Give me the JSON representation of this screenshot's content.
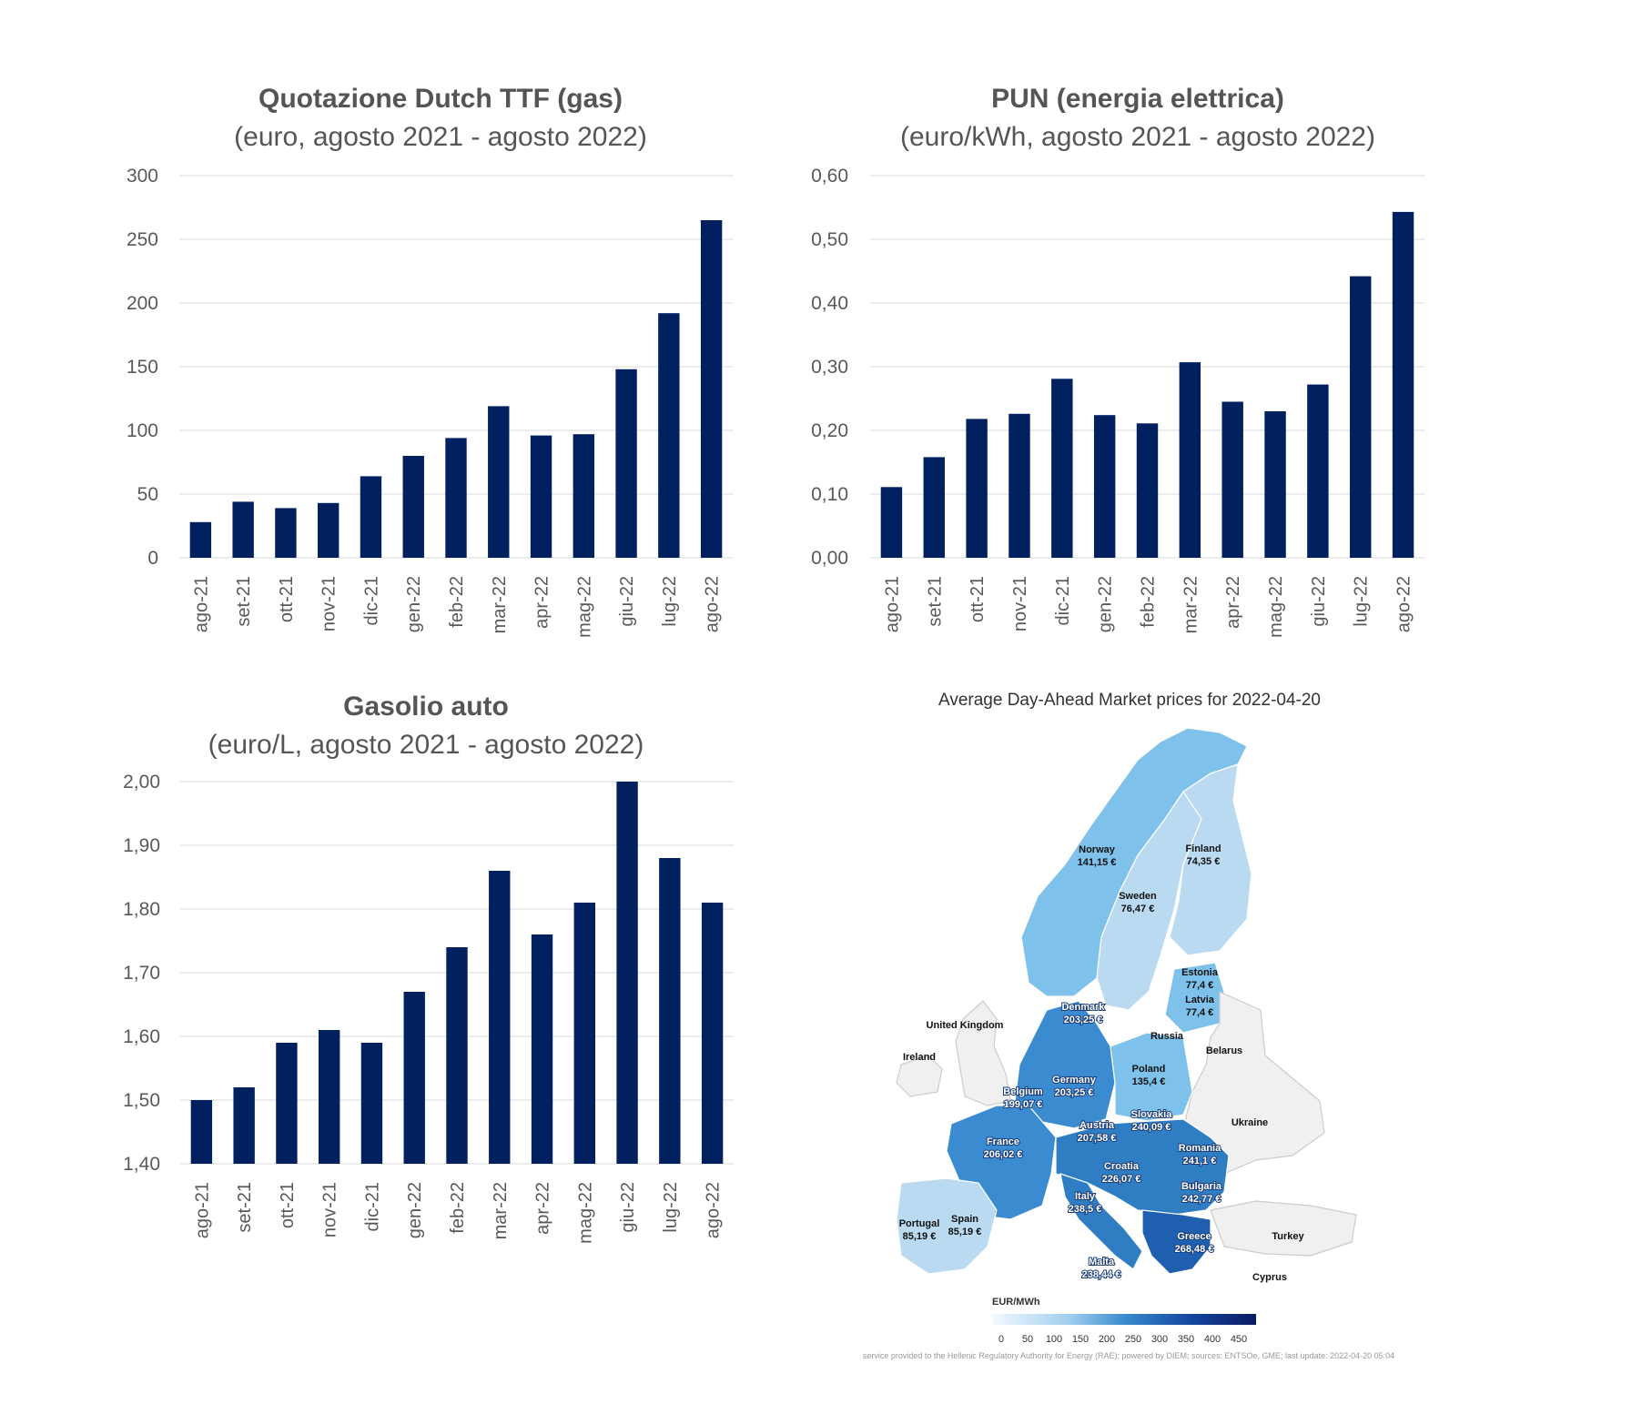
{
  "chart_data": [
    {
      "type": "bar",
      "title": "Quotazione Dutch TTF (gas)",
      "subtitle": "(euro, agosto 2021 - agosto 2022)",
      "categories": [
        "ago-21",
        "set-21",
        "ott-21",
        "nov-21",
        "dic-21",
        "gen-22",
        "feb-22",
        "mar-22",
        "apr-22",
        "mag-22",
        "giu-22",
        "lug-22",
        "ago-22"
      ],
      "values": [
        28,
        44,
        39,
        43,
        64,
        80,
        94,
        119,
        96,
        97,
        148,
        192,
        265
      ],
      "ylim": [
        0,
        300
      ],
      "yticks": [
        "0",
        "50",
        "100",
        "150",
        "200",
        "250",
        "300"
      ],
      "color": "#002060",
      "grid": true
    },
    {
      "type": "bar",
      "title": "PUN (energia elettrica)",
      "subtitle": "(euro/kWh, agosto 2021 - agosto 2022)",
      "categories": [
        "ago-21",
        "set-21",
        "ott-21",
        "nov-21",
        "dic-21",
        "gen-22",
        "feb-22",
        "mar-22",
        "apr-22",
        "mag-22",
        "giu-22",
        "lug-22",
        "ago-22"
      ],
      "values": [
        0.111,
        0.158,
        0.218,
        0.226,
        0.281,
        0.224,
        0.211,
        0.307,
        0.245,
        0.23,
        0.272,
        0.442,
        0.543
      ],
      "ylim": [
        0,
        0.6
      ],
      "yticks": [
        "0,00",
        "0,10",
        "0,20",
        "0,30",
        "0,40",
        "0,50",
        "0,60"
      ],
      "color": "#002060",
      "grid": true
    },
    {
      "type": "bar",
      "title": "Gasolio auto",
      "subtitle": "(euro/L, agosto 2021 - agosto 2022)",
      "categories": [
        "ago-21",
        "set-21",
        "ott-21",
        "nov-21",
        "dic-21",
        "gen-22",
        "feb-22",
        "mar-22",
        "apr-22",
        "mag-22",
        "giu-22",
        "lug-22",
        "ago-22"
      ],
      "values": [
        1.5,
        1.52,
        1.59,
        1.61,
        1.59,
        1.67,
        1.74,
        1.86,
        1.76,
        1.81,
        2.0,
        1.88,
        1.81
      ],
      "ylim": [
        1.4,
        2.0
      ],
      "yticks": [
        "1,40",
        "1,50",
        "1,60",
        "1,70",
        "1,80",
        "1,90",
        "2,00"
      ],
      "color": "#002060",
      "grid": true
    }
  ],
  "map": {
    "title": "Average Day-Ahead Market prices for 2022-04-20",
    "legend_title": "EUR/MWh",
    "legend_ticks": [
      "0",
      "50",
      "100",
      "150",
      "200",
      "250",
      "300",
      "350",
      "400",
      "450"
    ],
    "footer": "service provided to the Hellenic Regulatory Authority for Energy (RAE); powered by DIEM; sources: ENTSOe, GME; last update: 2022-04-20 05:04",
    "countries": [
      {
        "name": "Norway",
        "price": "141,15 €"
      },
      {
        "name": "Finland",
        "price": "74,35 €"
      },
      {
        "name": "Sweden",
        "price": "76,47 €"
      },
      {
        "name": "Estonia",
        "price": "77,4 €"
      },
      {
        "name": "Latvia",
        "price": "77,4 €"
      },
      {
        "name": "Denmark",
        "price": "203,25 €"
      },
      {
        "name": "United Kingdom",
        "price": ""
      },
      {
        "name": "Russia",
        "price": ""
      },
      {
        "name": "Ireland",
        "price": ""
      },
      {
        "name": "Belarus",
        "price": ""
      },
      {
        "name": "Poland",
        "price": "135,4 €"
      },
      {
        "name": "Germany",
        "price": "203,25 €"
      },
      {
        "name": "Belgium",
        "price": "199,07 €"
      },
      {
        "name": "Slovakia",
        "price": "240,09 €"
      },
      {
        "name": "Ukraine",
        "price": ""
      },
      {
        "name": "Austria",
        "price": "207,58 €"
      },
      {
        "name": "France",
        "price": "206,02 €"
      },
      {
        "name": "Romania",
        "price": "241,1 €"
      },
      {
        "name": "Croatia",
        "price": "226,07 €"
      },
      {
        "name": "Bulgaria",
        "price": "242,77 €"
      },
      {
        "name": "Italy",
        "price": "238,5 €"
      },
      {
        "name": "Portugal",
        "price": "85,19 €"
      },
      {
        "name": "Spain",
        "price": "85,19 €"
      },
      {
        "name": "Greece",
        "price": "268,48 €"
      },
      {
        "name": "Turkey",
        "price": ""
      },
      {
        "name": "Malta",
        "price": "238,44 €"
      },
      {
        "name": "Cyprus",
        "price": ""
      }
    ]
  }
}
